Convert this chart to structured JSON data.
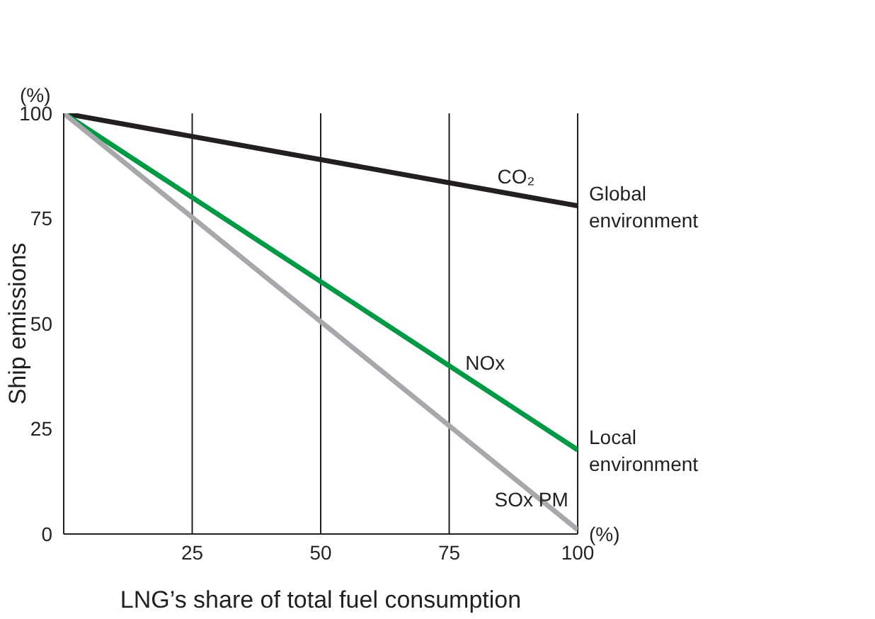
{
  "chart_data": {
    "type": "line",
    "xlabel": "LNG’s share of total fuel consumption",
    "ylabel": "Ship emissions",
    "x": [
      0,
      100
    ],
    "xlim": [
      0,
      100
    ],
    "xticks": [
      25,
      50,
      75,
      100
    ],
    "ylim": [
      0,
      100
    ],
    "yticks": [
      0,
      25,
      50,
      75,
      100
    ],
    "series": [
      {
        "name": "CO₂",
        "color": "#231f20",
        "values": [
          100,
          78
        ]
      },
      {
        "name": "NOx",
        "color": "#009a44",
        "values": [
          100,
          20
        ]
      },
      {
        "name": "SOx PM",
        "color": "#a6a8ab",
        "values": [
          100,
          1
        ]
      }
    ],
    "annotations": [
      "(%)",
      "(%)",
      {
        "text": "Global environment",
        "x": 100,
        "y": 78
      },
      {
        "text": "Local environment",
        "x": 100,
        "y": 20
      }
    ],
    "grid": "x",
    "marker": "none",
    "line_style": "solid"
  }
}
